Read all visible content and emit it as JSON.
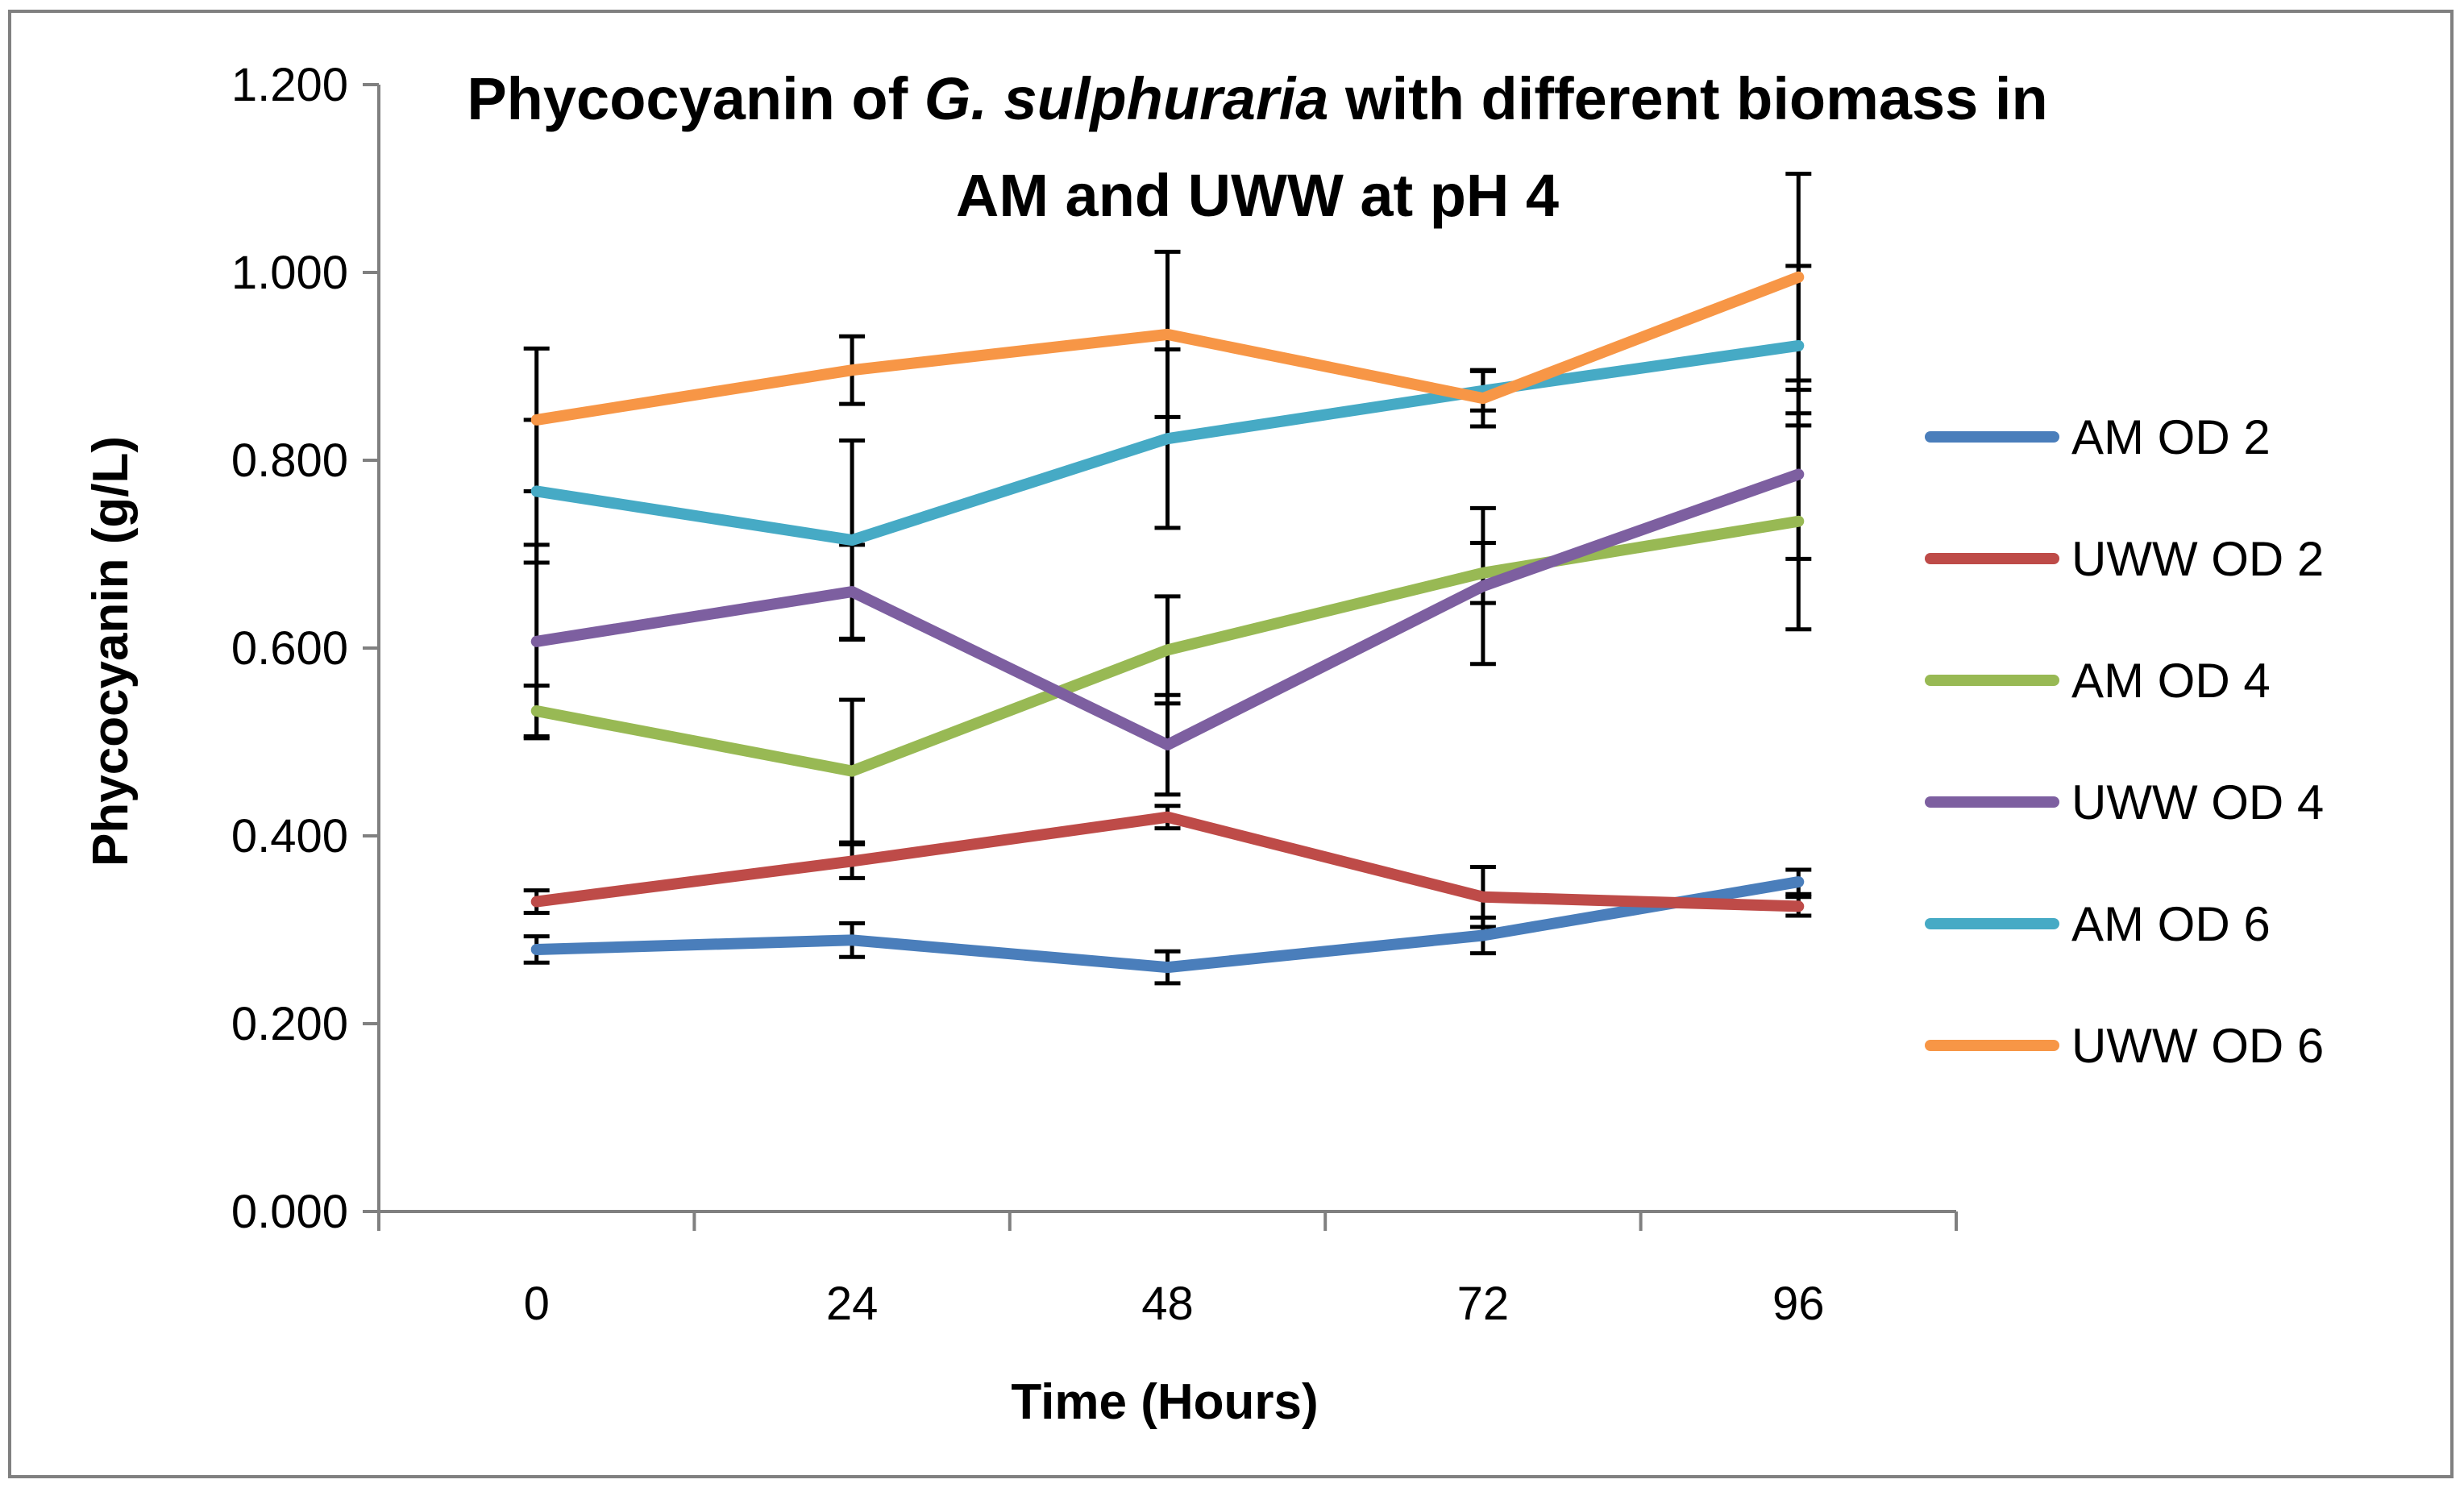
{
  "chart_data": {
    "type": "line",
    "title": {
      "line1_before": "Phycocyanin of ",
      "line1_italic": "G. sulphuraria",
      "line1_after": " with different biomass in",
      "line2": "AM and UWW at pH 4"
    },
    "xlabel": "Time (Hours)",
    "ylabel": "Phycocyanin (g/L)",
    "categories": [
      "0",
      "24",
      "48",
      "72",
      "96"
    ],
    "y_ticks": [
      "0.000",
      "0.200",
      "0.400",
      "0.600",
      "0.800",
      "1.000",
      "1.200"
    ],
    "ylim": [
      0,
      1.2
    ],
    "legend_position": "right",
    "series": [
      {
        "name": "AM OD 2",
        "color": "#4a7ebb",
        "values": [
          0.279,
          0.289,
          0.26,
          0.294,
          0.351
        ],
        "errors": [
          0.014,
          0.018,
          0.017,
          0.019,
          0.013
        ]
      },
      {
        "name": "UWW OD 2",
        "color": "#be4b48",
        "values": [
          0.33,
          0.373,
          0.42,
          0.335,
          0.325
        ],
        "errors": [
          0.012,
          0.018,
          0.012,
          0.032,
          0.01
        ]
      },
      {
        "name": "AM OD 4",
        "color": "#98b954",
        "values": [
          0.533,
          0.469,
          0.598,
          0.68,
          0.735
        ],
        "errors": [
          0.027,
          0.076,
          0.057,
          0.032,
          0.115
        ]
      },
      {
        "name": "UWW OD 4",
        "color": "#7d5fa0",
        "values": [
          0.607,
          0.66,
          0.497,
          0.666,
          0.785
        ],
        "errors": [
          0.103,
          0.05,
          0.053,
          0.083,
          0.09
        ]
      },
      {
        "name": "AM OD 6",
        "color": "#46aac5",
        "values": [
          0.767,
          0.715,
          0.823,
          0.874,
          0.922
        ],
        "errors": [
          0.076,
          0.106,
          0.095,
          0.021,
          0.085
        ]
      },
      {
        "name": "UWW OD 6",
        "color": "#f79646",
        "values": [
          0.843,
          0.896,
          0.934,
          0.866,
          0.995
        ],
        "errors": [
          0.076,
          0.036,
          0.088,
          0.03,
          0.11
        ]
      }
    ]
  }
}
